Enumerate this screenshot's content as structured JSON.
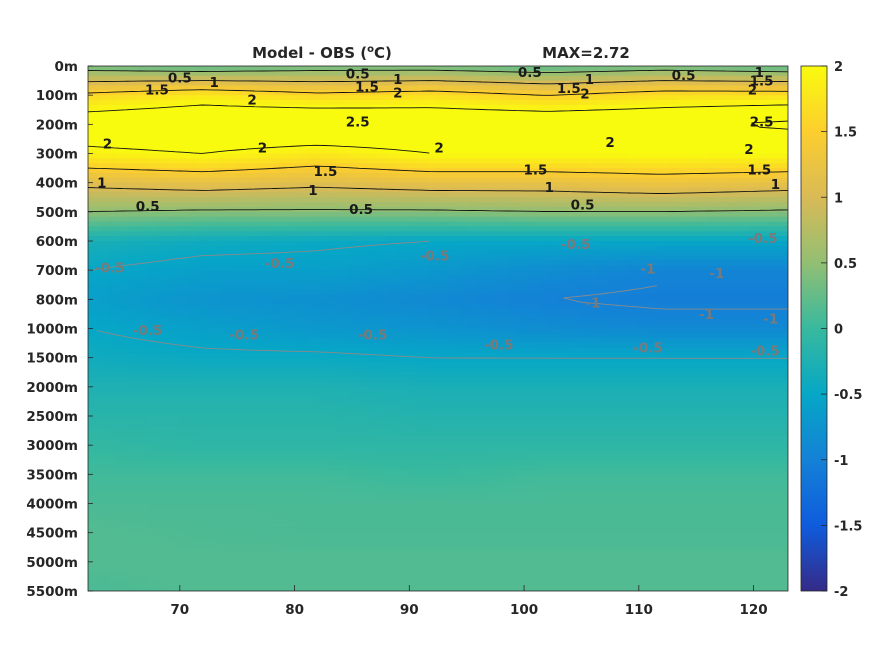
{
  "chart_data": {
    "type": "heatmap",
    "title": "Model - OBS (",
    "title_unit_sup": "o",
    "title_unit_tail": "C)",
    "subtitle": "MAX=2.72",
    "xlabel": "",
    "ylabel": "",
    "xlim": [
      62,
      123
    ],
    "x_ticks": [
      70,
      80,
      90,
      100,
      110,
      120
    ],
    "y_ticks": [
      "0m",
      "100m",
      "200m",
      "300m",
      "400m",
      "500m",
      "600m",
      "700m",
      "800m",
      "1000m",
      "1500m",
      "2000m",
      "2500m",
      "3000m",
      "3500m",
      "4000m",
      "4500m",
      "5000m",
      "5500m"
    ],
    "y_order": "top-to-bottom",
    "clim": [
      -2,
      2
    ],
    "colorbar_ticks": [
      "2",
      "1.5",
      "1",
      "0.5",
      "0",
      "-0.5",
      "-1",
      "-1.5",
      "-2"
    ],
    "colormap": "parula",
    "grid": false,
    "legend": "colorbar-right",
    "rows": [
      {
        "depth": "0m",
        "values": [
          0.3,
          0.2,
          0.3,
          0.3,
          0.2,
          0.3,
          0.2
        ]
      },
      {
        "depth": "100m",
        "values": [
          1.6,
          1.8,
          1.6,
          1.7,
          1.5,
          1.7,
          1.7
        ]
      },
      {
        "depth": "200m",
        "values": [
          2.3,
          2.4,
          2.5,
          2.4,
          2.4,
          2.4,
          2.6
        ]
      },
      {
        "depth": "300m",
        "values": [
          1.9,
          2.0,
          1.8,
          2.0,
          2.0,
          2.0,
          2.0
        ]
      },
      {
        "depth": "400m",
        "values": [
          1.1,
          1.2,
          1.1,
          1.2,
          1.2,
          1.3,
          1.2
        ]
      },
      {
        "depth": "500m",
        "values": [
          0.5,
          0.45,
          0.45,
          0.45,
          0.5,
          0.5,
          0.45
        ]
      },
      {
        "depth": "600m",
        "values": [
          -0.3,
          -0.4,
          -0.45,
          -0.5,
          -0.5,
          -0.5,
          -0.5
        ]
      },
      {
        "depth": "700m",
        "values": [
          -0.5,
          -0.6,
          -0.6,
          -0.7,
          -0.85,
          -0.95,
          -0.95
        ]
      },
      {
        "depth": "800m",
        "values": [
          -0.6,
          -0.75,
          -0.8,
          -0.9,
          -1.0,
          -1.05,
          -1.05
        ]
      },
      {
        "depth": "1000m",
        "values": [
          -0.5,
          -0.6,
          -0.7,
          -0.75,
          -0.85,
          -0.9,
          -0.9
        ]
      },
      {
        "depth": "1500m",
        "values": [
          -0.4,
          -0.45,
          -0.45,
          -0.5,
          -0.5,
          -0.5,
          -0.5
        ]
      },
      {
        "depth": "2000m",
        "values": [
          -0.25,
          -0.25,
          -0.25,
          -0.3,
          -0.3,
          -0.3,
          -0.3
        ]
      },
      {
        "depth": "2500m",
        "values": [
          -0.15,
          -0.15,
          -0.15,
          -0.2,
          -0.2,
          -0.2,
          -0.2
        ]
      },
      {
        "depth": "3000m",
        "values": [
          -0.05,
          -0.1,
          -0.1,
          -0.1,
          -0.1,
          -0.1,
          -0.1
        ]
      },
      {
        "depth": "3500m",
        "values": [
          0.05,
          0.05,
          0.05,
          0.0,
          0.05,
          0.05,
          0.05
        ]
      },
      {
        "depth": "4000m",
        "values": [
          0.1,
          0.1,
          0.1,
          0.1,
          0.1,
          0.1,
          0.1
        ]
      },
      {
        "depth": "4500m",
        "values": [
          0.15,
          0.12,
          0.1,
          0.1,
          0.1,
          0.1,
          0.1
        ]
      },
      {
        "depth": "5000m",
        "values": [
          0.15,
          0.15,
          0.15,
          0.15,
          0.15,
          0.15,
          0.15
        ]
      },
      {
        "depth": "5500m",
        "values": [
          0.1,
          0.15,
          0.15,
          0.15,
          0.15,
          0.15,
          0.15
        ]
      }
    ],
    "row_x": [
      62,
      72,
      82,
      92,
      102,
      112,
      123
    ],
    "contour_labels": [
      {
        "text": "0.5",
        "x": 70.0,
        "y": 0.4,
        "color": "#1a1a1a"
      },
      {
        "text": "1",
        "x": 73.0,
        "y": 0.55,
        "color": "#1a1a1a"
      },
      {
        "text": "1.5",
        "x": 68.0,
        "y": 0.8,
        "color": "#1a1a1a"
      },
      {
        "text": "2",
        "x": 76.3,
        "y": 1.15,
        "color": "#1a1a1a"
      },
      {
        "text": "0.5",
        "x": 85.5,
        "y": 0.25,
        "color": "#1a1a1a"
      },
      {
        "text": "1.5",
        "x": 86.3,
        "y": 0.7,
        "color": "#1a1a1a"
      },
      {
        "text": "1",
        "x": 89.0,
        "y": 0.45,
        "color": "#1a1a1a"
      },
      {
        "text": "2",
        "x": 89.0,
        "y": 0.9,
        "color": "#1a1a1a"
      },
      {
        "text": "2.5",
        "x": 85.5,
        "y": 1.9,
        "color": "#1a1a1a"
      },
      {
        "text": "0.5",
        "x": 100.5,
        "y": 0.2,
        "color": "#1a1a1a"
      },
      {
        "text": "1.5",
        "x": 103.9,
        "y": 0.75,
        "color": "#1a1a1a"
      },
      {
        "text": "1",
        "x": 105.7,
        "y": 0.45,
        "color": "#1a1a1a"
      },
      {
        "text": "2",
        "x": 105.3,
        "y": 0.95,
        "color": "#1a1a1a"
      },
      {
        "text": "0.5",
        "x": 113.9,
        "y": 0.3,
        "color": "#1a1a1a"
      },
      {
        "text": "1",
        "x": 120.5,
        "y": 0.2,
        "color": "#1a1a1a"
      },
      {
        "text": "1.5",
        "x": 120.7,
        "y": 0.5,
        "color": "#1a1a1a"
      },
      {
        "text": "2",
        "x": 119.9,
        "y": 0.8,
        "color": "#1a1a1a"
      },
      {
        "text": "2.5",
        "x": 120.7,
        "y": 1.9,
        "color": "#1a1a1a"
      },
      {
        "text": "2",
        "x": 63.7,
        "y": 2.65,
        "color": "#1a1a1a"
      },
      {
        "text": "2",
        "x": 77.2,
        "y": 2.8,
        "color": "#1a1a1a"
      },
      {
        "text": "2",
        "x": 92.6,
        "y": 2.8,
        "color": "#1a1a1a"
      },
      {
        "text": "2",
        "x": 107.5,
        "y": 2.6,
        "color": "#1a1a1a"
      },
      {
        "text": "2",
        "x": 119.6,
        "y": 2.85,
        "color": "#1a1a1a"
      },
      {
        "text": "1.5",
        "x": 82.7,
        "y": 3.6,
        "color": "#1a1a1a"
      },
      {
        "text": "1.5",
        "x": 101.0,
        "y": 3.55,
        "color": "#1a1a1a"
      },
      {
        "text": "1.5",
        "x": 120.5,
        "y": 3.55,
        "color": "#1a1a1a"
      },
      {
        "text": "1",
        "x": 63.2,
        "y": 4.0,
        "color": "#1a1a1a"
      },
      {
        "text": "1",
        "x": 81.6,
        "y": 4.25,
        "color": "#1a1a1a"
      },
      {
        "text": "1",
        "x": 102.2,
        "y": 4.15,
        "color": "#1a1a1a"
      },
      {
        "text": "1",
        "x": 121.9,
        "y": 4.05,
        "color": "#1a1a1a"
      },
      {
        "text": "0.5",
        "x": 67.2,
        "y": 4.8,
        "color": "#1a1a1a"
      },
      {
        "text": "0.5",
        "x": 85.8,
        "y": 4.9,
        "color": "#1a1a1a"
      },
      {
        "text": "0.5",
        "x": 105.1,
        "y": 4.75,
        "color": "#1a1a1a"
      },
      {
        "text": "-0.5",
        "x": 104.5,
        "y": 6.1,
        "color": "#7a7a7a"
      },
      {
        "text": "-0.5",
        "x": 120.8,
        "y": 5.9,
        "color": "#7a7a7a"
      },
      {
        "text": "-0.5",
        "x": 63.9,
        "y": 6.9,
        "color": "#7a7a7a"
      },
      {
        "text": "-0.5",
        "x": 78.7,
        "y": 6.75,
        "color": "#7a7a7a"
      },
      {
        "text": "-0.5",
        "x": 92.2,
        "y": 6.5,
        "color": "#7a7a7a"
      },
      {
        "text": "-1",
        "x": 110.8,
        "y": 6.95,
        "color": "#7a7a7a"
      },
      {
        "text": "-1",
        "x": 116.8,
        "y": 7.1,
        "color": "#7a7a7a"
      },
      {
        "text": "-1",
        "x": 106.0,
        "y": 8.1,
        "color": "#7a7a7a"
      },
      {
        "text": "-1",
        "x": 115.9,
        "y": 8.5,
        "color": "#7a7a7a"
      },
      {
        "text": "-1",
        "x": 121.5,
        "y": 8.65,
        "color": "#7a7a7a"
      },
      {
        "text": "-0.5",
        "x": 67.2,
        "y": 9.05,
        "color": "#7a7a7a"
      },
      {
        "text": "-0.5",
        "x": 75.6,
        "y": 9.2,
        "color": "#7a7a7a"
      },
      {
        "text": "-0.5",
        "x": 86.8,
        "y": 9.2,
        "color": "#7a7a7a"
      },
      {
        "text": "-0.5",
        "x": 97.8,
        "y": 9.55,
        "color": "#7a7a7a"
      },
      {
        "text": "-0.5",
        "x": 110.8,
        "y": 9.65,
        "color": "#7a7a7a"
      },
      {
        "text": "-0.5",
        "x": 121.0,
        "y": 9.75,
        "color": "#7a7a7a"
      }
    ]
  }
}
